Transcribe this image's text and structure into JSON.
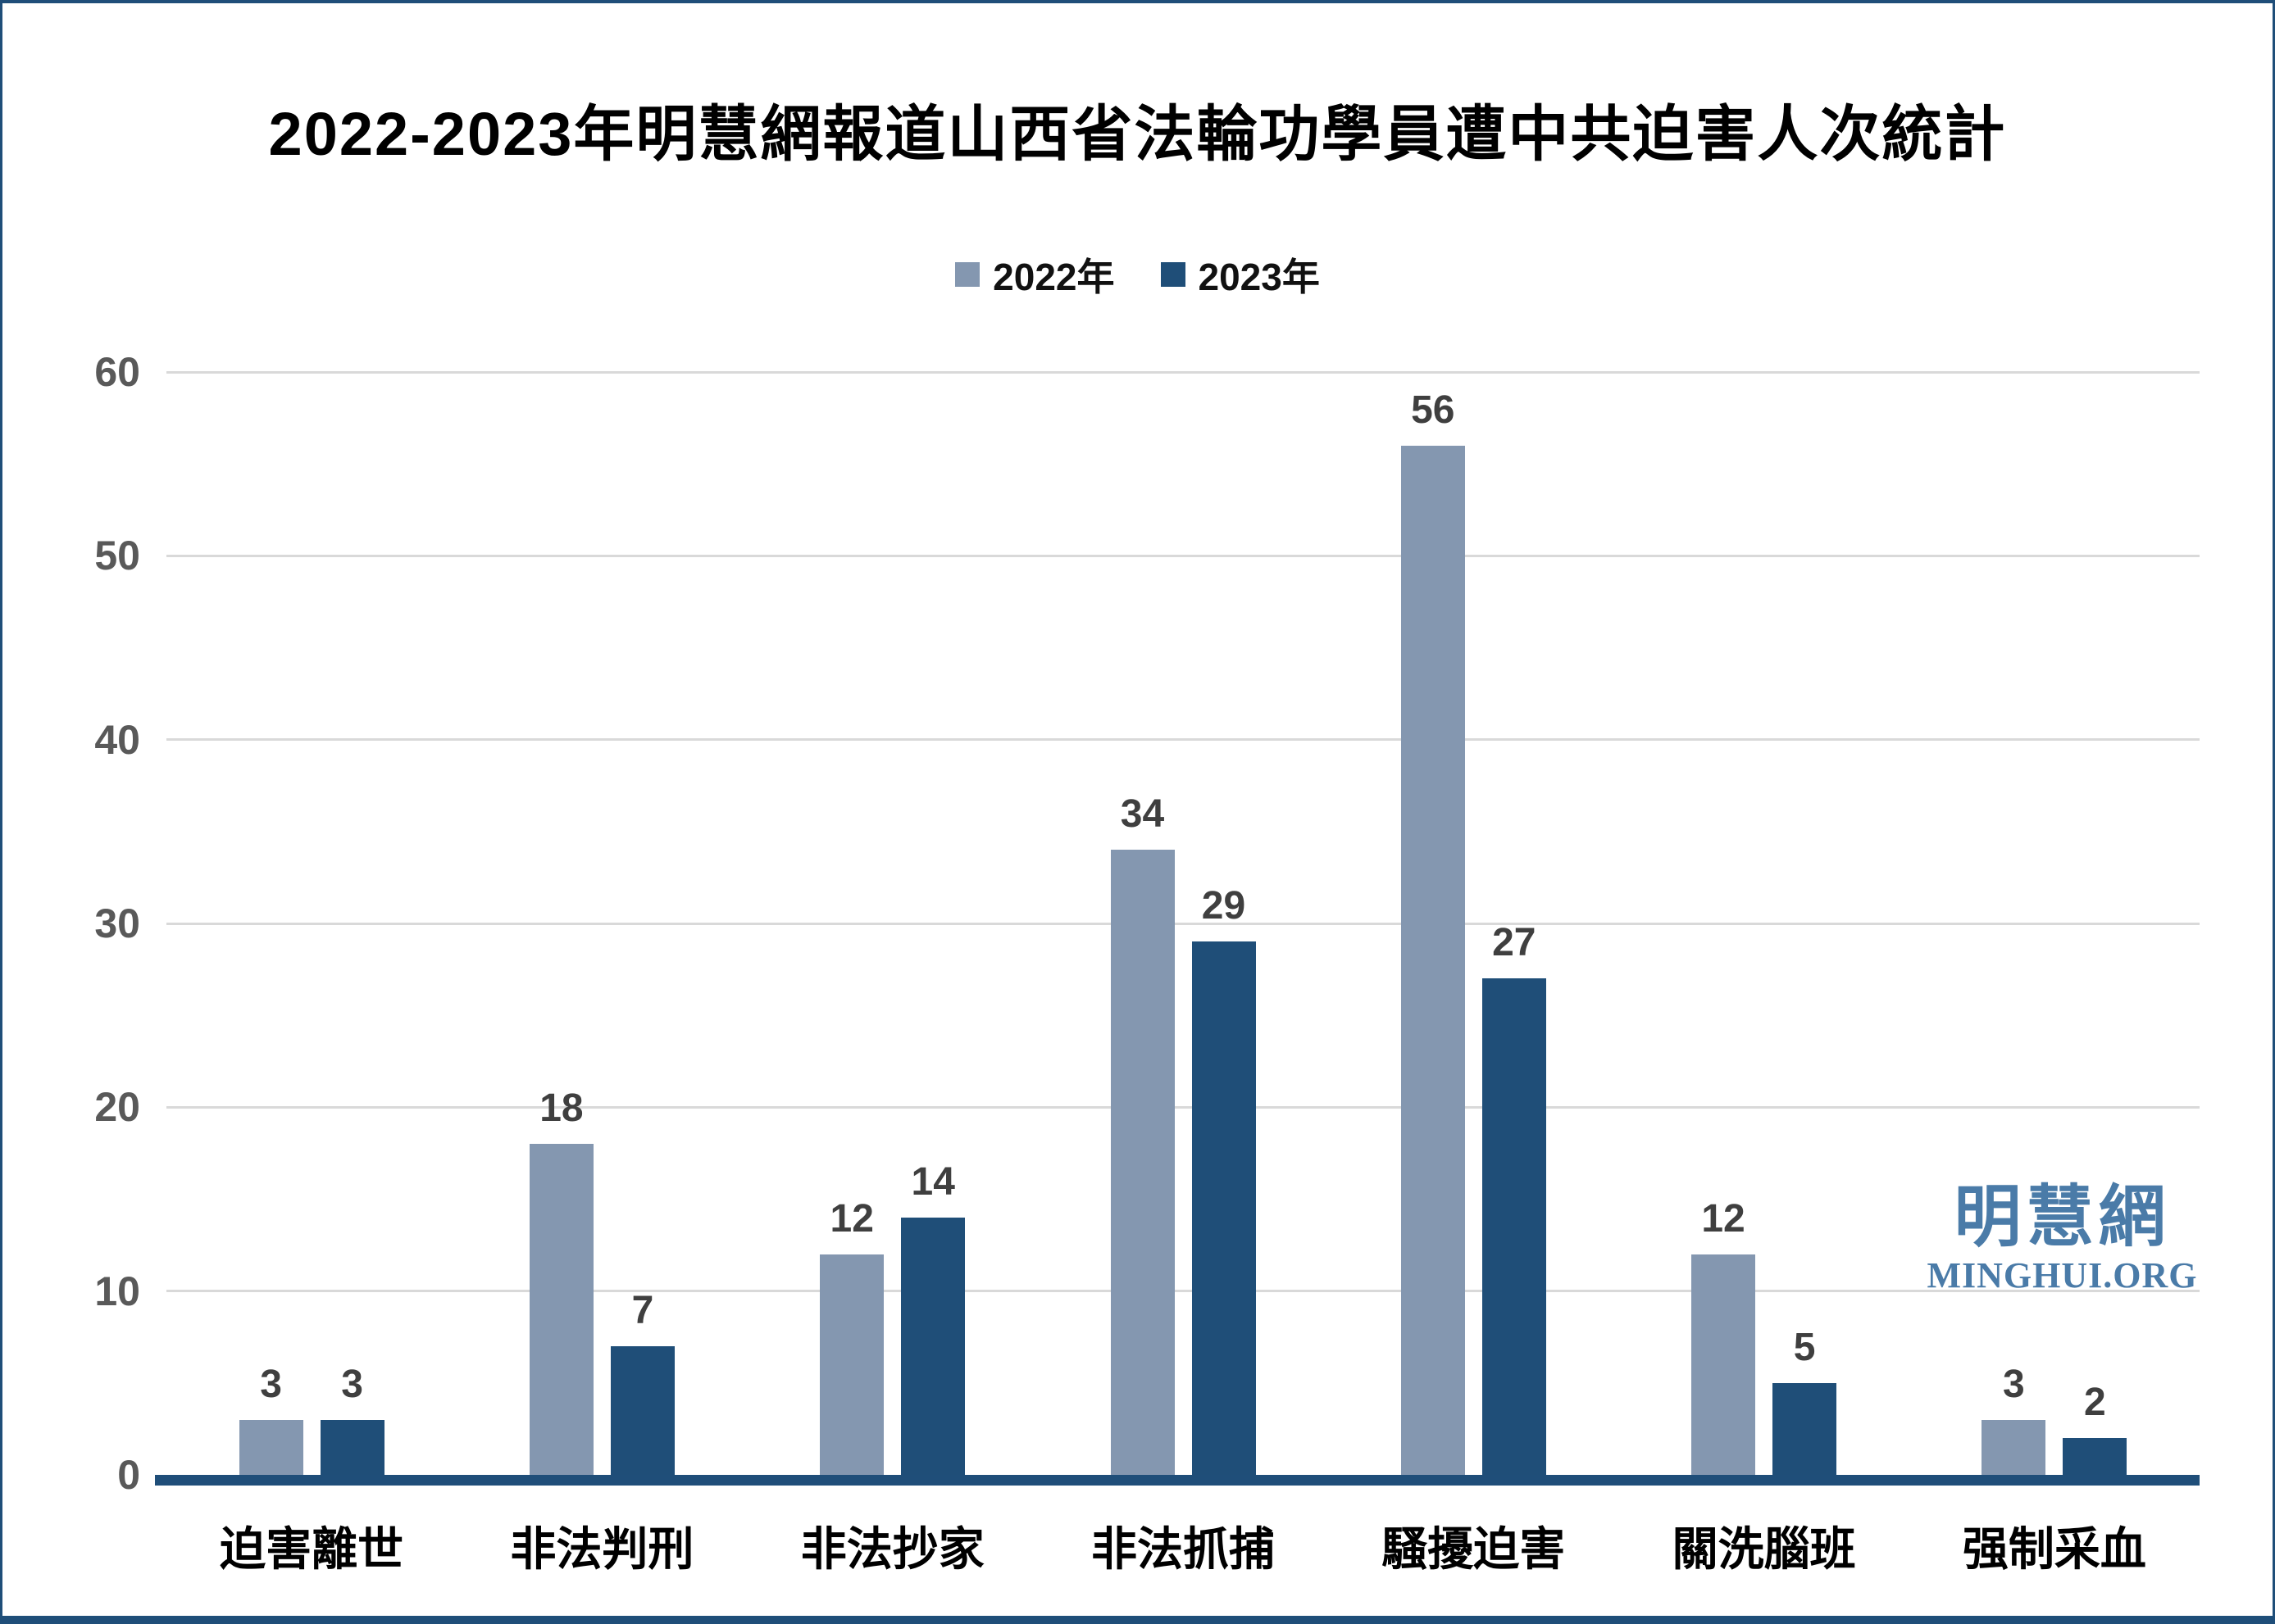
{
  "frame": {
    "background": "#FFFFFF",
    "border_color": "#1F4E79"
  },
  "header": {
    "title": "2022-2023年明慧網報道山西省法輪功學員遭中共迫害人次統計"
  },
  "legend": {
    "items": [
      {
        "label": "2022年",
        "color": "#8497B0"
      },
      {
        "label": "2023年",
        "color": "#1F4E78"
      }
    ]
  },
  "axes": {
    "tick_label_color": "#595959",
    "grid_color": "#D9D9D9",
    "axis_line_color": "#1F4E79",
    "value_label_color": "#3F3F3F"
  },
  "watermark": {
    "site_name_cn": "明慧網",
    "site_domain": "MINGHUI.ORG",
    "color": "#4A7BA8"
  },
  "chart_data": {
    "type": "bar",
    "title": "2022-2023年明慧網報道山西省法輪功學員遭中共迫害人次統計",
    "categories": [
      "迫害離世",
      "非法判刑",
      "非法抄家",
      "非法抓捕",
      "騷擾迫害",
      "關洗腦班",
      "强制采血"
    ],
    "series": [
      {
        "name": "2022年",
        "color": "#8497B0",
        "values": [
          3,
          18,
          12,
          34,
          56,
          12,
          3
        ]
      },
      {
        "name": "2023年",
        "color": "#1F4E78",
        "values": [
          3,
          7,
          14,
          29,
          27,
          5,
          2
        ]
      }
    ],
    "xlabel": "",
    "ylabel": "",
    "ylim": [
      0,
      60
    ],
    "yticks": [
      0,
      10,
      20,
      30,
      40,
      50,
      60
    ],
    "grid": true,
    "legend_position": "top-center",
    "value_labels_shown": true
  }
}
